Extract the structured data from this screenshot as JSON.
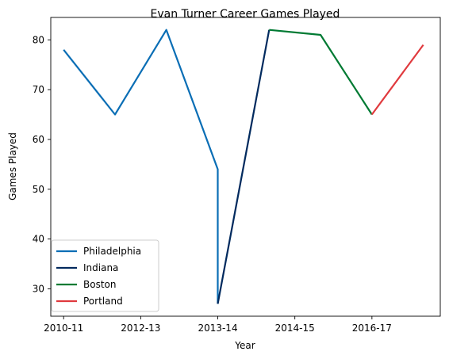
{
  "chart_data": {
    "type": "line",
    "title": "Evan Turner Career Games Played",
    "xlabel": "Year",
    "ylabel": "Games Played",
    "x_tick_labels": [
      "2010-11",
      "2012-13",
      "2013-14",
      "2014-15",
      "2016-17"
    ],
    "y_ticks": [
      30,
      40,
      50,
      60,
      70,
      80
    ],
    "xlim": [
      -0.25,
      7.33
    ],
    "ylim": [
      24.5,
      84.5
    ],
    "grid": false,
    "legend_position": "lower left",
    "series": [
      {
        "name": "Philadelphia",
        "color": "#0a6eb5",
        "points": [
          [
            0,
            78
          ],
          [
            1,
            65
          ],
          [
            2,
            82
          ],
          [
            3,
            54
          ],
          [
            3,
            27
          ]
        ]
      },
      {
        "name": "Indiana",
        "color": "#012a5e",
        "points": [
          [
            3,
            27
          ],
          [
            4,
            82
          ]
        ]
      },
      {
        "name": "Boston",
        "color": "#007a33",
        "points": [
          [
            4,
            82
          ],
          [
            5,
            81
          ],
          [
            6,
            65
          ]
        ]
      },
      {
        "name": "Portland",
        "color": "#e03a3e",
        "points": [
          [
            6,
            65
          ],
          [
            7,
            79
          ]
        ]
      }
    ]
  }
}
